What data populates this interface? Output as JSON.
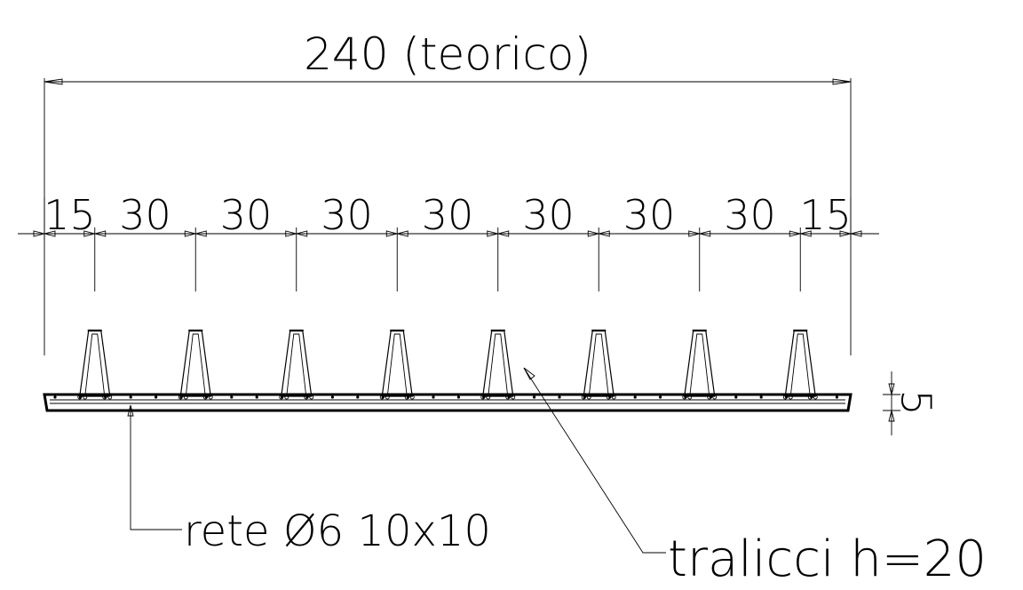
{
  "drawing": {
    "overall_dimension": "240 (teorico)",
    "spacing_labels": [
      "15",
      "30",
      "30",
      "30",
      "30",
      "30",
      "30",
      "30",
      "15"
    ],
    "thickness_label": "5",
    "truss_count": 8,
    "callouts": {
      "mesh": "rete Ø6 10x10",
      "truss": "tralicci h=20"
    }
  }
}
